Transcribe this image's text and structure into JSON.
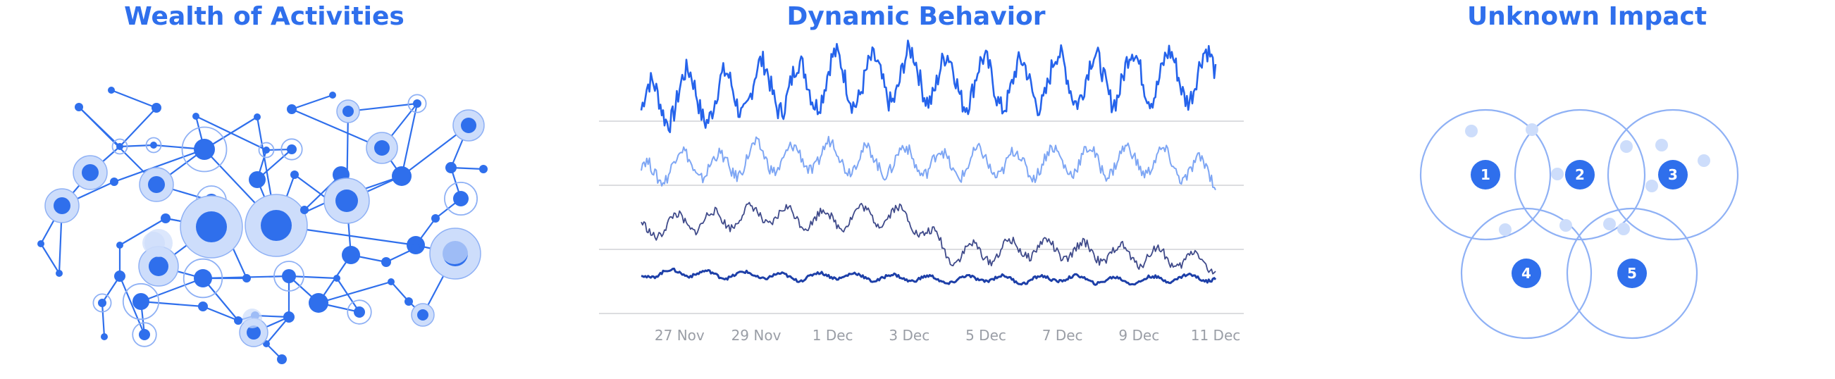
{
  "panels": {
    "network": {
      "title": "Wealth of Activities"
    },
    "chart": {
      "title": "Dynamic Behavior"
    },
    "venn": {
      "title": "Unknown Impact"
    }
  },
  "colors": {
    "accent": "#2f6fec",
    "node_fill": "#2f6fec",
    "halo_fill": "#cdddfb",
    "halo_stroke": "#8fb1f5",
    "grid": "#dcdde0",
    "tick_text": "#9a9ea6",
    "series": [
      "#2563eb",
      "#7ea6f4",
      "#3f4a8a",
      "#1d3fa8"
    ]
  },
  "chart_data": {
    "type": "line",
    "title": "Dynamic Behavior",
    "xlabel": "",
    "ylabel": "",
    "x_start": "2024-11-26",
    "x_end": "2024-12-11",
    "xticks": [
      "27 Nov",
      "29 Nov",
      "1 Dec",
      "3 Dec",
      "5 Dec",
      "7 Dec",
      "9 Dec",
      "11 Dec"
    ],
    "grid": true,
    "series": [
      {
        "values": [
          0.74,
          0.8,
          0.78,
          0.83,
          0.82,
          0.86,
          0.84,
          0.87,
          0.85,
          0.84,
          0.83,
          0.86,
          0.85,
          0.87,
          0.86,
          0.87
        ]
      },
      {
        "values": [
          0.5,
          0.55,
          0.53,
          0.57,
          0.56,
          0.58,
          0.55,
          0.56,
          0.54,
          0.55,
          0.54,
          0.56,
          0.55,
          0.56,
          0.54,
          0.5
        ]
      },
      {
        "values": [
          0.3,
          0.33,
          0.34,
          0.36,
          0.35,
          0.34,
          0.36,
          0.35,
          0.22,
          0.22,
          0.24,
          0.23,
          0.22,
          0.21,
          0.2,
          0.18
        ]
      },
      {
        "values": [
          0.14,
          0.15,
          0.14,
          0.14,
          0.13,
          0.14,
          0.13,
          0.13,
          0.12,
          0.13,
          0.12,
          0.13,
          0.12,
          0.12,
          0.13,
          0.13
        ]
      }
    ]
  },
  "venn": {
    "labels": [
      "1",
      "2",
      "3",
      "4",
      "5"
    ]
  }
}
